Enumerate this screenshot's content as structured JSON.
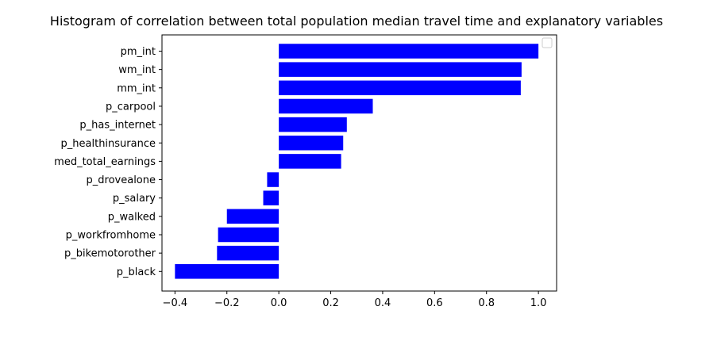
{
  "chart_data": {
    "type": "bar",
    "orientation": "horizontal",
    "title": "Histogram of correlation between total population median travel time and explanatory variables",
    "xlabel": "",
    "ylabel": "",
    "xlim": [
      -0.45,
      1.07
    ],
    "xticks": [
      -0.4,
      -0.2,
      0.0,
      0.2,
      0.4,
      0.6,
      0.8,
      1.0
    ],
    "xtick_labels": [
      "−0.4",
      "−0.2",
      "0.0",
      "0.2",
      "0.4",
      "0.6",
      "0.8",
      "1.0"
    ],
    "grid": false,
    "legend": "top-right (empty)",
    "bar_color": "#0000ff",
    "categories": [
      "pm_int",
      "wm_int",
      "mm_int",
      "p_carpool",
      "p_has_internet",
      "p_healthinsurance",
      "med_total_earnings",
      "p_drovealone",
      "p_salary",
      "p_walked",
      "p_workfromhome",
      "p_bikemotorother",
      "p_black"
    ],
    "values": [
      1.0,
      0.935,
      0.932,
      0.362,
      0.262,
      0.248,
      0.24,
      -0.045,
      -0.06,
      -0.2,
      -0.234,
      -0.238,
      -0.4
    ]
  }
}
